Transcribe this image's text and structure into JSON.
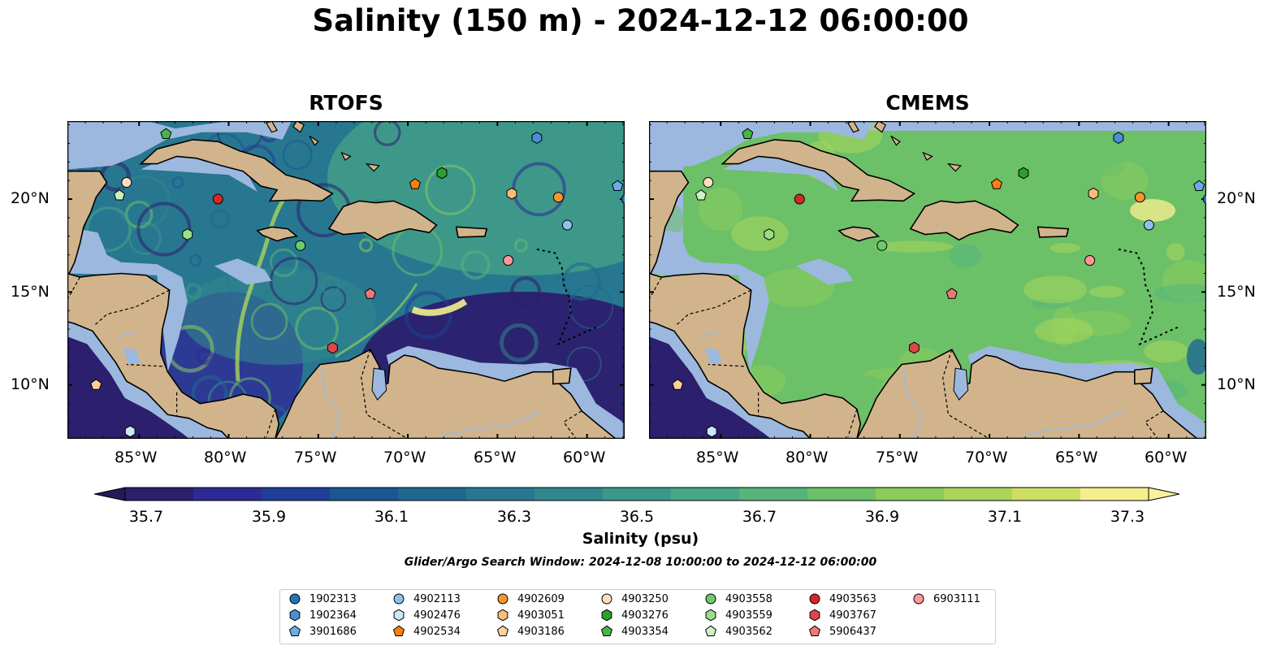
{
  "title": "Salinity (150 m) - 2024-12-12 06:00:00",
  "panels": [
    {
      "title": "RTOFS",
      "style": "rtofs"
    },
    {
      "title": "CMEMS",
      "style": "cmems"
    }
  ],
  "lon_ticks": [
    "85°W",
    "80°W",
    "75°W",
    "70°W",
    "65°W",
    "60°W"
  ],
  "lat_ticks": [
    "20°N",
    "15°N",
    "10°N"
  ],
  "colorbar": {
    "label": "Salinity (psu)",
    "ticks": [
      "35.7",
      "35.9",
      "36.1",
      "36.3",
      "36.5",
      "36.7",
      "36.9",
      "37.1",
      "37.3"
    ],
    "colors": [
      "#2b1f6e",
      "#2e2a95",
      "#1f3f97",
      "#1b5693",
      "#1f6791",
      "#287790",
      "#31878d",
      "#3a978a",
      "#46a686",
      "#56b47b",
      "#6cc068",
      "#8bcc5c",
      "#aad55a",
      "#cdde63",
      "#f4ee8e"
    ]
  },
  "search_window": "Glider/Argo Search Window: 2024-12-08 10:00:00 to 2024-12-12 06:00:00",
  "legend": [
    {
      "id": "1902313",
      "marker": "circle",
      "color": "#1f77b4"
    },
    {
      "id": "1902364",
      "marker": "hexagon",
      "color": "#4a8fd4"
    },
    {
      "id": "3901686",
      "marker": "pentagon",
      "color": "#6aaee8"
    },
    {
      "id": "4902113",
      "marker": "circle",
      "color": "#8ec1eb"
    },
    {
      "id": "4902476",
      "marker": "hexagon",
      "color": "#cde8f5"
    },
    {
      "id": "4902534",
      "marker": "pentagon",
      "color": "#ff7f0e"
    },
    {
      "id": "4902609",
      "marker": "circle",
      "color": "#f5962e"
    },
    {
      "id": "4903051",
      "marker": "hexagon",
      "color": "#ffbb78"
    },
    {
      "id": "4903186",
      "marker": "pentagon",
      "color": "#ffcf9a"
    },
    {
      "id": "4903250",
      "marker": "circle",
      "color": "#ffe0c0"
    },
    {
      "id": "4903276",
      "marker": "hexagon",
      "color": "#2ca02c"
    },
    {
      "id": "4903354",
      "marker": "pentagon",
      "color": "#49b449"
    },
    {
      "id": "4903558",
      "marker": "circle",
      "color": "#6ccb6c"
    },
    {
      "id": "4903559",
      "marker": "hexagon",
      "color": "#98df8a"
    },
    {
      "id": "4903562",
      "marker": "pentagon",
      "color": "#c9f2c0"
    },
    {
      "id": "4903563",
      "marker": "circle",
      "color": "#d62728"
    },
    {
      "id": "4903767",
      "marker": "hexagon",
      "color": "#e04648"
    },
    {
      "id": "5906437",
      "marker": "pentagon",
      "color": "#ee7777"
    },
    {
      "id": "6903111",
      "marker": "circle",
      "color": "#ff9896"
    }
  ],
  "floats": [
    {
      "id": "1902313",
      "lon": -57.8,
      "lat": 20.0
    },
    {
      "id": "1902364",
      "lon": -62.8,
      "lat": 23.3
    },
    {
      "id": "3901686",
      "lon": -58.3,
      "lat": 20.7
    },
    {
      "id": "4902113",
      "lon": -61.1,
      "lat": 18.6
    },
    {
      "id": "4902476",
      "lon": -85.5,
      "lat": 7.5
    },
    {
      "id": "4902534",
      "lon": -69.6,
      "lat": 20.8
    },
    {
      "id": "4902609",
      "lon": -61.6,
      "lat": 20.1
    },
    {
      "id": "4903051",
      "lon": -64.2,
      "lat": 20.3
    },
    {
      "id": "4903186",
      "lon": -87.4,
      "lat": 10.0
    },
    {
      "id": "4903250",
      "lon": -85.7,
      "lat": 20.9
    },
    {
      "id": "4903276",
      "lon": -68.1,
      "lat": 21.4
    },
    {
      "id": "4903354",
      "lon": -83.5,
      "lat": 23.5
    },
    {
      "id": "4903558",
      "lon": -76.0,
      "lat": 17.5
    },
    {
      "id": "4903559",
      "lon": -82.3,
      "lat": 18.1
    },
    {
      "id": "4903562",
      "lon": -86.1,
      "lat": 20.2
    },
    {
      "id": "4903563",
      "lon": -80.6,
      "lat": 20.0
    },
    {
      "id": "4903767",
      "lon": -74.2,
      "lat": 12.0
    },
    {
      "id": "5906437",
      "lon": -72.1,
      "lat": 14.9
    },
    {
      "id": "6903111",
      "lon": -64.4,
      "lat": 16.7
    }
  ]
}
